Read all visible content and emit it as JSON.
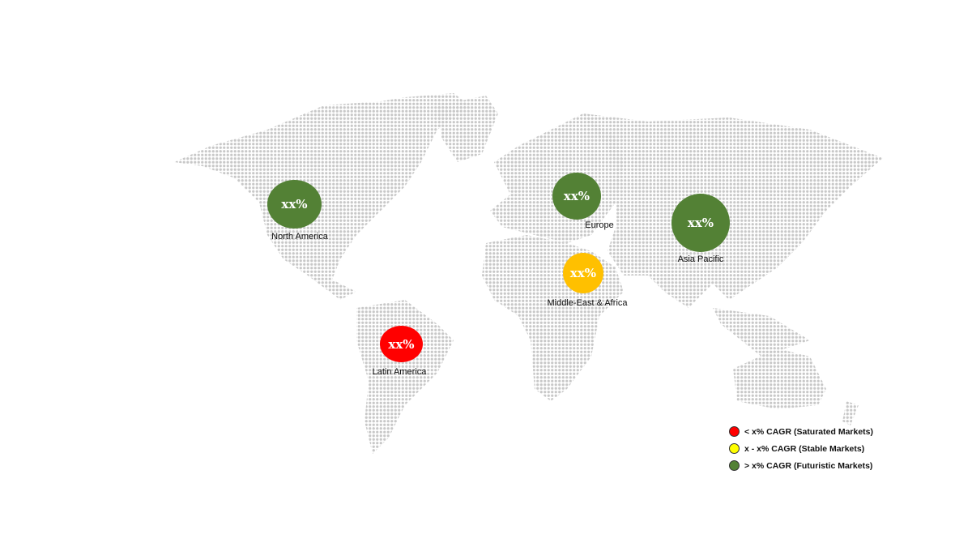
{
  "regions": [
    {
      "name": "North America",
      "value": "xx%",
      "category": "futuristic"
    },
    {
      "name": "Europe",
      "value": "xx%",
      "category": "futuristic"
    },
    {
      "name": "Asia Pacific",
      "value": "xx%",
      "category": "futuristic"
    },
    {
      "name": "Middle-East & Africa",
      "value": "xx%",
      "category": "stable"
    },
    {
      "name": "Latin America",
      "value": "xx%",
      "category": "saturated"
    }
  ],
  "legend": [
    {
      "label": "< x% CAGR (Saturated Markets)",
      "color": "#ff0000"
    },
    {
      "label": "x - x% CAGR (Stable Markets)",
      "color": "#ffff00"
    },
    {
      "label": "> x% CAGR (Futuristic Markets)",
      "color": "#538135"
    }
  ],
  "colors": {
    "futuristic": "#538135",
    "stable": "#ffc000",
    "saturated": "#ff0000",
    "map_dots": "#c8c8c8"
  }
}
